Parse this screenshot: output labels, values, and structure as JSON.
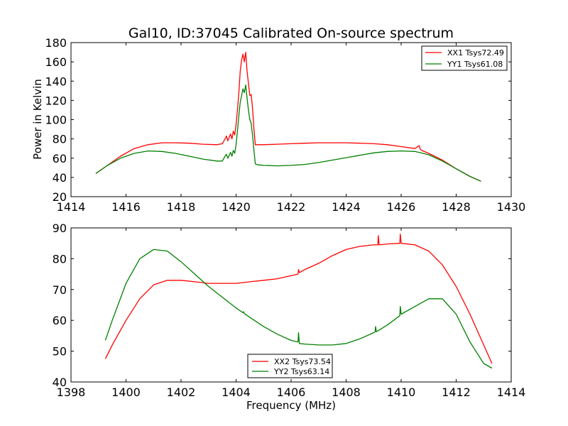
{
  "title": "Gal10, ID:37045 Calibrated On-source spectrum",
  "colors": {
    "xx": "#ff0000",
    "yy": "#008000"
  },
  "chart_data": [
    {
      "type": "line",
      "title": "Gal10, ID:37045 Calibrated On-source spectrum",
      "xlabel": "",
      "ylabel": "Power in Kelvin",
      "xlim": [
        1414,
        1430
      ],
      "ylim": [
        20,
        180
      ],
      "xticks": [
        1414,
        1416,
        1418,
        1420,
        1422,
        1424,
        1426,
        1428,
        1430
      ],
      "yticks": [
        20,
        40,
        60,
        80,
        100,
        120,
        140,
        160,
        180
      ],
      "grid": false,
      "legend_position": "top-right",
      "series": [
        {
          "name": "XX1 Tsys72.49",
          "color": "#ff0000",
          "x": [
            1414.9,
            1415.3,
            1415.8,
            1416.3,
            1416.8,
            1417.3,
            1417.8,
            1418.3,
            1418.8,
            1419.3,
            1419.5,
            1419.6,
            1419.65,
            1419.7,
            1419.8,
            1419.85,
            1419.9,
            1419.95,
            1420.0,
            1420.05,
            1420.1,
            1420.15,
            1420.2,
            1420.25,
            1420.3,
            1420.35,
            1420.4,
            1420.45,
            1420.5,
            1420.55,
            1420.6,
            1420.65,
            1420.7,
            1420.8,
            1421.0,
            1421.5,
            1422.0,
            1422.5,
            1423.0,
            1423.5,
            1424.0,
            1424.5,
            1425.0,
            1425.5,
            1426.0,
            1426.5,
            1426.65,
            1426.7,
            1426.75,
            1427.0,
            1427.5,
            1428.0,
            1428.5,
            1428.9
          ],
          "y": [
            44,
            52,
            62,
            70,
            74,
            76,
            76,
            75.5,
            74.5,
            74,
            75,
            80,
            83,
            78,
            85,
            80,
            88,
            84,
            95,
            110,
            128,
            150,
            162,
            168,
            160,
            170,
            150,
            138,
            125,
            126,
            112,
            90,
            74,
            74,
            74,
            74.5,
            75,
            75.5,
            76,
            76,
            76,
            75.5,
            75,
            74,
            72,
            70,
            73,
            69,
            68,
            65,
            58,
            49,
            41,
            36
          ]
        },
        {
          "name": "YY1 Tsys61.08",
          "color": "#008000",
          "x": [
            1414.9,
            1415.3,
            1415.8,
            1416.3,
            1416.8,
            1417.3,
            1417.8,
            1418.3,
            1418.8,
            1419.3,
            1419.5,
            1419.6,
            1419.65,
            1419.7,
            1419.8,
            1419.85,
            1419.9,
            1419.95,
            1420.0,
            1420.05,
            1420.1,
            1420.15,
            1420.2,
            1420.25,
            1420.3,
            1420.35,
            1420.4,
            1420.45,
            1420.5,
            1420.55,
            1420.6,
            1420.65,
            1420.7,
            1420.8,
            1421.0,
            1421.5,
            1422.0,
            1422.5,
            1423.0,
            1423.5,
            1424.0,
            1424.5,
            1425.0,
            1425.5,
            1426.0,
            1426.5,
            1427.0,
            1427.5,
            1428.0,
            1428.5,
            1428.9
          ],
          "y": [
            44,
            52,
            60,
            65,
            67.5,
            67,
            65,
            62,
            59,
            57,
            57,
            62,
            64,
            60,
            66,
            62,
            68,
            65,
            74,
            88,
            104,
            118,
            125,
            132,
            128,
            136,
            122,
            110,
            100,
            96,
            84,
            68,
            54,
            53,
            52.5,
            52,
            52.5,
            53.5,
            55.5,
            58,
            60.5,
            63,
            65.5,
            67,
            67.5,
            67,
            63.5,
            57,
            49,
            41,
            36
          ]
        }
      ]
    },
    {
      "type": "line",
      "title": "",
      "xlabel": "Frequency (MHz)",
      "ylabel": "",
      "xlim": [
        1398,
        1414
      ],
      "ylim": [
        40,
        90
      ],
      "xticks": [
        1398,
        1400,
        1402,
        1404,
        1406,
        1408,
        1410,
        1412,
        1414
      ],
      "yticks": [
        40,
        50,
        60,
        70,
        80,
        90
      ],
      "grid": false,
      "legend_position": "bottom-center",
      "series": [
        {
          "name": "XX2 Tsys73.54",
          "color": "#ff0000",
          "x": [
            1399.25,
            1399.5,
            1400.0,
            1400.5,
            1401.0,
            1401.5,
            1402.0,
            1402.5,
            1403.0,
            1403.5,
            1404.0,
            1404.5,
            1405.0,
            1405.5,
            1406.0,
            1406.25,
            1406.27,
            1406.3,
            1406.5,
            1407.0,
            1407.5,
            1408.0,
            1408.5,
            1409.0,
            1409.15,
            1409.17,
            1409.2,
            1409.5,
            1409.95,
            1409.97,
            1410.0,
            1410.5,
            1411.0,
            1411.5,
            1412.0,
            1412.5,
            1413.0,
            1413.3
          ],
          "y": [
            47.5,
            52,
            60,
            67,
            71.5,
            73,
            73,
            72.5,
            72,
            72,
            72,
            72.5,
            73,
            73.5,
            74.5,
            75,
            76.5,
            75.5,
            76.5,
            78.5,
            81,
            83,
            84,
            84.5,
            84.5,
            87.5,
            84.5,
            84.8,
            85,
            88,
            85,
            84.5,
            82.5,
            78,
            71,
            62,
            52,
            46
          ]
        },
        {
          "name": "YY2 Tsys63.14",
          "color": "#008000",
          "x": [
            1399.25,
            1399.5,
            1400.0,
            1400.5,
            1401.0,
            1401.5,
            1402.0,
            1402.5,
            1403.0,
            1403.5,
            1404.0,
            1404.25,
            1404.27,
            1404.3,
            1404.5,
            1405.0,
            1405.5,
            1406.0,
            1406.25,
            1406.27,
            1406.3,
            1406.5,
            1407.0,
            1407.5,
            1408.0,
            1408.5,
            1409.0,
            1409.05,
            1409.07,
            1409.1,
            1409.5,
            1409.95,
            1409.97,
            1410.0,
            1410.5,
            1411.0,
            1411.5,
            1412.0,
            1412.5,
            1413.0,
            1413.3
          ],
          "y": [
            53.5,
            60,
            72,
            80,
            83,
            82.5,
            79,
            75,
            71,
            67.5,
            64,
            62.5,
            62.8,
            62.2,
            61,
            58,
            55.5,
            53.5,
            53,
            56,
            52.5,
            52.3,
            52,
            52,
            52.5,
            54,
            56,
            56.2,
            58,
            56.3,
            58.5,
            61.5,
            64.5,
            62,
            64.5,
            67,
            67,
            62,
            53,
            46,
            44.5
          ]
        }
      ]
    }
  ]
}
